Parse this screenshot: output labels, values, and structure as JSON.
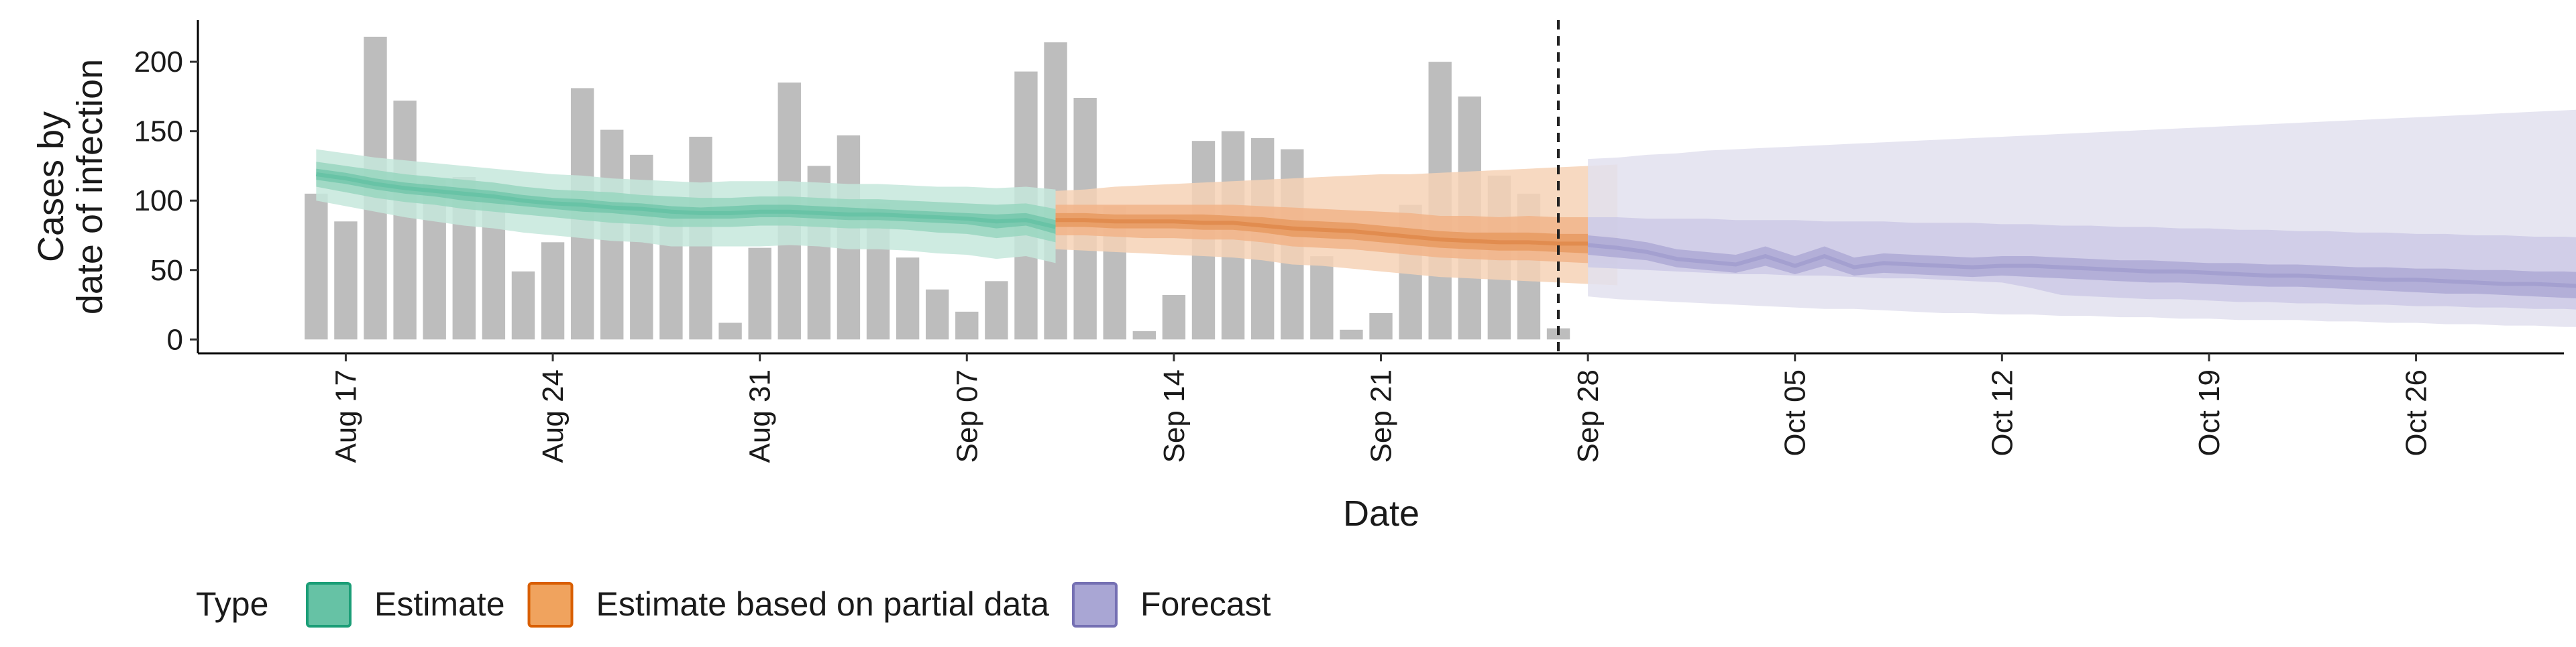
{
  "chart_data": {
    "type": "area",
    "title": "",
    "xlabel": "Date",
    "ylabel_lines": [
      "Cases by",
      "date of infection"
    ],
    "ylim": [
      -10,
      230
    ],
    "xlim": [
      "2020-08-12",
      "2020-10-31"
    ],
    "x_ticks": [
      {
        "date": "2020-08-17",
        "label": "Aug 17"
      },
      {
        "date": "2020-08-24",
        "label": "Aug 24"
      },
      {
        "date": "2020-08-31",
        "label": "Aug 31"
      },
      {
        "date": "2020-09-07",
        "label": "Sep 07"
      },
      {
        "date": "2020-09-14",
        "label": "Sep 14"
      },
      {
        "date": "2020-09-21",
        "label": "Sep 21"
      },
      {
        "date": "2020-09-28",
        "label": "Sep 28"
      },
      {
        "date": "2020-10-05",
        "label": "Oct 05"
      },
      {
        "date": "2020-10-12",
        "label": "Oct 12"
      },
      {
        "date": "2020-10-19",
        "label": "Oct 19"
      },
      {
        "date": "2020-10-26",
        "label": "Oct 26"
      }
    ],
    "y_ticks": [
      0,
      50,
      100,
      150,
      200
    ],
    "grid": false,
    "legend": {
      "placement": "bottom-left",
      "title": "Type",
      "entries": [
        {
          "label": "Estimate",
          "fill": "#66c2a5",
          "stroke": "#1b9e77"
        },
        {
          "label": "Estimate based on partial data",
          "fill": "#f0a35e",
          "stroke": "#d95f02"
        },
        {
          "label": "Forecast",
          "fill": "#a9a6d4",
          "stroke": "#7570b3"
        }
      ]
    },
    "vline_date": "2020-09-27",
    "bars": {
      "color": "#bdbdbd",
      "start_date": "2020-08-16",
      "values": [
        105,
        85,
        218,
        172,
        115,
        117,
        103,
        49,
        70,
        181,
        151,
        133,
        87,
        146,
        12,
        66,
        185,
        125,
        147,
        98,
        59,
        36,
        20,
        42,
        193,
        214,
        174,
        96,
        6,
        32,
        143,
        150,
        145,
        137,
        60,
        7,
        19,
        97,
        200,
        175,
        118,
        105,
        8
      ]
    },
    "series": [
      {
        "type": "Estimate",
        "colors": {
          "outer": "#c6e8dc",
          "mid": "#99d6c0",
          "inner": "#74c7ab",
          "line": "#66c2a5"
        },
        "start_date": "2020-08-16",
        "median": [
          119,
          116,
          112,
          109,
          107,
          105,
          103,
          100,
          98,
          97,
          95,
          94,
          92,
          91,
          91,
          92,
          92,
          91,
          90,
          90,
          89,
          88,
          87,
          85,
          86,
          81
        ],
        "inner_lower": [
          115,
          112,
          108,
          105,
          103,
          100,
          98,
          96,
          94,
          92,
          91,
          89,
          87,
          87,
          87,
          88,
          88,
          87,
          86,
          86,
          85,
          84,
          83,
          80,
          82,
          76
        ],
        "inner_upper": [
          123,
          120,
          116,
          113,
          111,
          109,
          107,
          104,
          102,
          101,
          99,
          98,
          96,
          95,
          96,
          97,
          97,
          96,
          95,
          94,
          93,
          92,
          91,
          90,
          91,
          86
        ],
        "mid_lower": [
          110,
          106,
          102,
          99,
          97,
          94,
          92,
          90,
          88,
          86,
          84,
          83,
          81,
          81,
          81,
          82,
          82,
          81,
          80,
          80,
          79,
          77,
          76,
          73,
          75,
          70
        ],
        "mid_upper": [
          128,
          125,
          122,
          119,
          117,
          115,
          113,
          110,
          108,
          107,
          106,
          104,
          103,
          102,
          102,
          103,
          103,
          102,
          101,
          101,
          100,
          99,
          98,
          97,
          98,
          94
        ],
        "outer_lower": [
          100,
          96,
          92,
          88,
          85,
          82,
          80,
          77,
          75,
          73,
          71,
          70,
          67,
          67,
          67,
          67,
          68,
          67,
          65,
          65,
          64,
          62,
          61,
          58,
          60,
          55
        ],
        "outer_upper": [
          137,
          134,
          131,
          129,
          127,
          125,
          123,
          121,
          119,
          118,
          116,
          115,
          114,
          113,
          114,
          114,
          114,
          113,
          112,
          112,
          111,
          110,
          110,
          109,
          110,
          108
        ]
      },
      {
        "type": "Estimate based on partial data",
        "colors": {
          "outer": "#f6d2b6",
          "mid": "#f1b48a",
          "inner": "#e79a62",
          "line": "#e08a4c"
        },
        "start_date": "2020-09-10",
        "median": [
          86,
          86,
          85,
          85,
          85,
          84,
          84,
          82,
          80,
          79,
          78,
          76,
          74,
          72,
          71,
          70,
          70,
          69,
          69,
          68
        ],
        "inner_lower": [
          81,
          81,
          80,
          80,
          80,
          79,
          79,
          77,
          74,
          73,
          72,
          70,
          68,
          66,
          65,
          64,
          64,
          63,
          62,
          61
        ],
        "inner_upper": [
          91,
          91,
          90,
          90,
          90,
          90,
          89,
          88,
          86,
          85,
          84,
          82,
          80,
          78,
          77,
          77,
          77,
          76,
          76,
          75
        ],
        "mid_lower": [
          75,
          75,
          74,
          73,
          73,
          72,
          72,
          70,
          67,
          66,
          65,
          63,
          61,
          59,
          58,
          57,
          57,
          56,
          55,
          54
        ],
        "mid_upper": [
          97,
          97,
          97,
          97,
          97,
          97,
          97,
          96,
          95,
          94,
          93,
          92,
          91,
          89,
          89,
          88,
          89,
          88,
          88,
          88
        ],
        "outer_lower": [
          65,
          64,
          63,
          62,
          61,
          60,
          59,
          57,
          54,
          53,
          51,
          49,
          47,
          45,
          44,
          43,
          42,
          41,
          40,
          39
        ],
        "outer_upper": [
          107,
          108,
          110,
          111,
          112,
          113,
          114,
          115,
          116,
          117,
          118,
          119,
          119,
          120,
          121,
          122,
          123,
          124,
          125,
          126
        ]
      },
      {
        "type": "Forecast",
        "colors": {
          "outer": "#e2e1ef",
          "mid": "#cdcae6",
          "inner": "#aea9d5",
          "line": "#a29ecf"
        },
        "start_date": "2020-09-28",
        "median": [
          68,
          66,
          63,
          58,
          56,
          54,
          60,
          53,
          60,
          52,
          55,
          54,
          53,
          52,
          53,
          53,
          52,
          51,
          50,
          49,
          49,
          48,
          47,
          46,
          46,
          45,
          44,
          43,
          43,
          42,
          41,
          40,
          40,
          39,
          38,
          38,
          37,
          36,
          36,
          35,
          34
        ],
        "inner_lower": [
          61,
          59,
          57,
          52,
          50,
          48,
          53,
          47,
          53,
          46,
          48,
          47,
          46,
          45,
          46,
          45,
          44,
          43,
          42,
          41,
          41,
          40,
          39,
          38,
          38,
          37,
          36,
          35,
          34,
          33,
          33,
          32,
          31,
          30,
          29,
          29,
          28,
          27,
          27,
          26,
          25
        ],
        "inner_upper": [
          75,
          73,
          70,
          65,
          63,
          61,
          67,
          60,
          67,
          59,
          62,
          61,
          60,
          59,
          60,
          60,
          59,
          58,
          57,
          57,
          56,
          55,
          55,
          54,
          54,
          53,
          52,
          52,
          51,
          51,
          50,
          50,
          49,
          49,
          48,
          48,
          47,
          47,
          46,
          46,
          45
        ],
        "mid_lower": [
          52,
          51,
          50,
          49,
          48,
          47,
          47,
          46,
          46,
          45,
          44,
          44,
          43,
          42,
          41,
          37,
          32,
          31,
          30,
          29,
          29,
          28,
          27,
          27,
          26,
          26,
          25,
          25,
          24,
          24,
          23,
          23,
          22,
          22,
          21,
          21,
          20,
          20,
          20,
          19,
          19
        ],
        "mid_upper": [
          88,
          88,
          87,
          87,
          87,
          86,
          86,
          86,
          85,
          85,
          85,
          84,
          84,
          84,
          83,
          83,
          82,
          82,
          81,
          81,
          80,
          80,
          79,
          79,
          78,
          78,
          77,
          77,
          76,
          76,
          75,
          75,
          74,
          74,
          73,
          73,
          72,
          72,
          71,
          71,
          70
        ],
        "outer_lower": [
          31,
          29,
          28,
          27,
          26,
          25,
          24,
          23,
          22,
          22,
          21,
          20,
          19,
          19,
          18,
          18,
          17,
          17,
          16,
          16,
          15,
          15,
          14,
          14,
          14,
          13,
          13,
          12,
          12,
          11,
          11,
          10,
          10,
          9,
          9,
          9,
          9,
          8,
          8,
          8,
          8
        ],
        "outer_upper": [
          130,
          131,
          133,
          134,
          136,
          137,
          138,
          139,
          140,
          141,
          142,
          143,
          144,
          145,
          146,
          147,
          148,
          149,
          150,
          151,
          152,
          153,
          154,
          155,
          156,
          157,
          158,
          159,
          160,
          161,
          162,
          163,
          164,
          165,
          166,
          167,
          168,
          169,
          170,
          171,
          172
        ]
      }
    ]
  }
}
